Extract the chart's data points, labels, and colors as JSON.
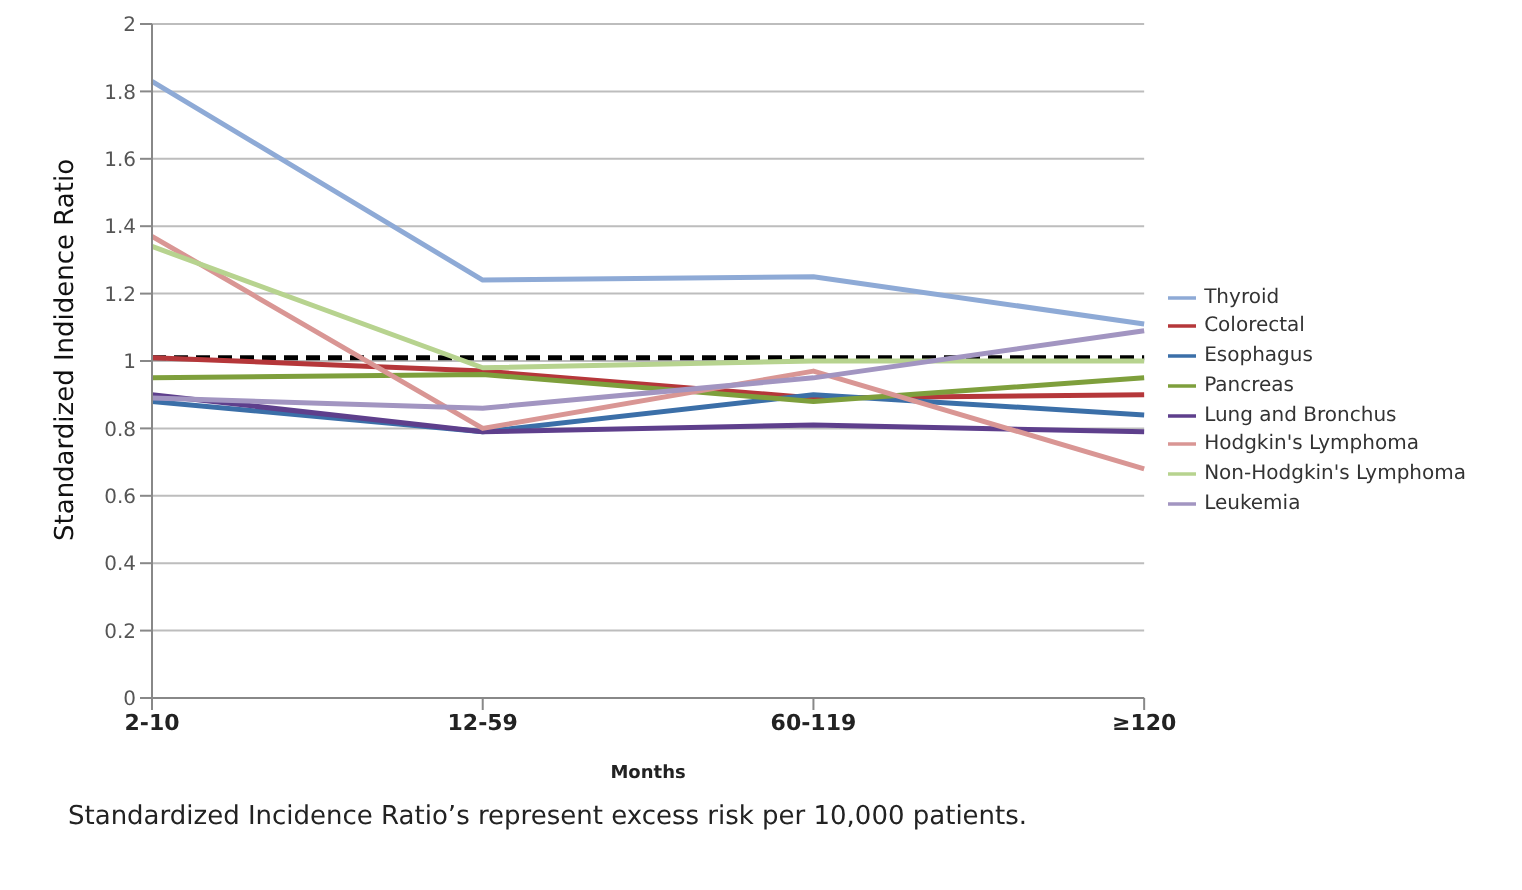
{
  "chart_data": {
    "type": "line",
    "xlabel": "Months",
    "ylabel": "Standardized Indidence Ratio",
    "categories": [
      "2-10",
      "12-59",
      "60-119",
      "≥120"
    ],
    "series": [
      {
        "name": "Thyroid",
        "color": "#8eaad6",
        "values": [
          1.83,
          1.24,
          1.25,
          1.11
        ]
      },
      {
        "name": "Colorectal",
        "color": "#b5373a",
        "values": [
          1.01,
          0.97,
          0.89,
          0.9
        ]
      },
      {
        "name": "Esophagus",
        "color": "#3b6fa8",
        "values": [
          0.88,
          0.79,
          0.9,
          0.84
        ]
      },
      {
        "name": "Pancreas",
        "color": "#7e9f3c",
        "values": [
          0.95,
          0.96,
          0.88,
          0.95
        ]
      },
      {
        "name": "Lung and Bronchus",
        "color": "#5e3f8c",
        "values": [
          0.9,
          0.79,
          0.81,
          0.79
        ]
      },
      {
        "name": "Hodgkin's Lymphoma",
        "color": "#d99694",
        "values": [
          1.37,
          0.8,
          0.97,
          0.68
        ]
      },
      {
        "name": "Non-Hodgkin's Lymphoma",
        "color": "#b7d38f",
        "values": [
          1.34,
          0.98,
          1.0,
          1.0
        ]
      },
      {
        "name": "Leukemia",
        "color": "#a295c1",
        "values": [
          0.89,
          0.86,
          0.95,
          1.09
        ]
      }
    ],
    "ylim": [
      0,
      2
    ],
    "yticks": [
      0,
      0.2,
      0.4,
      0.6,
      0.8,
      1,
      1.2,
      1.4,
      1.6,
      1.8,
      2
    ],
    "grid": "y",
    "legend": "right",
    "marker": "none",
    "line_style": "solid",
    "ref_lines": [
      {
        "axis": "y",
        "value": 1.01,
        "color": "#000000",
        "line_style": "dashed"
      }
    ],
    "annotations": [
      "Standardized Incidence Ratio’s represent excess risk per 10,000 patients."
    ]
  }
}
